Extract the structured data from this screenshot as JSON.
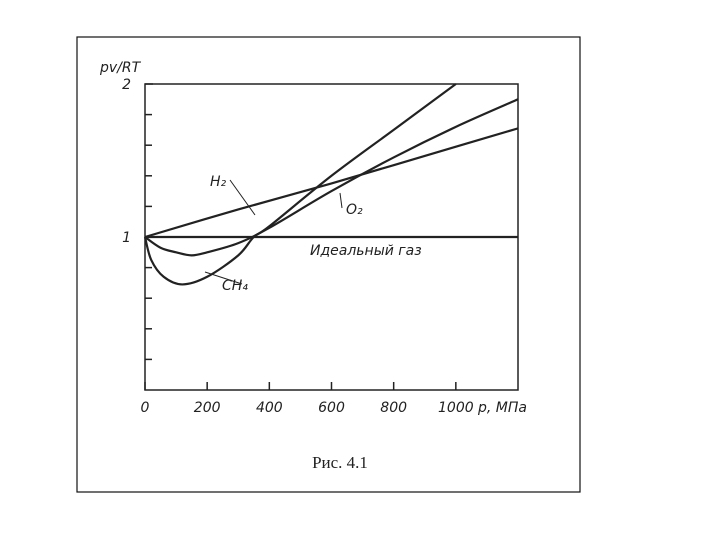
{
  "chart_data": {
    "type": "line",
    "title": "Рис. 4.1",
    "y_label": "pv/RT",
    "x_label": "p, МПа",
    "xlim": [
      0,
      1200
    ],
    "ylim": [
      0,
      2
    ],
    "xticks": [
      0,
      200,
      400,
      600,
      800,
      1000
    ],
    "yticks": [
      1,
      2
    ],
    "yminorticks": [
      0.2,
      0.4,
      0.6,
      0.8,
      1.2,
      1.4,
      1.6,
      1.8
    ],
    "color": "#222222",
    "series": [
      {
        "name": "H₂",
        "color": "#222222",
        "x": [
          0,
          300,
          600,
          900,
          1200
        ],
        "values": [
          1,
          1.18,
          1.35,
          1.53,
          1.71
        ]
      },
      {
        "name": "O₂",
        "color": "#222222",
        "x": [
          0,
          50,
          100,
          150,
          200,
          300,
          400,
          600,
          800,
          1000,
          1200
        ],
        "values": [
          1,
          0.93,
          0.9,
          0.88,
          0.9,
          0.96,
          1.06,
          1.3,
          1.52,
          1.72,
          1.9
        ]
      },
      {
        "name": "CH₄",
        "color": "#222222",
        "x": [
          0,
          20,
          60,
          120,
          200,
          300,
          350,
          400,
          600,
          800,
          1000
        ],
        "values": [
          1,
          0.85,
          0.74,
          0.69,
          0.74,
          0.88,
          1.0,
          1.07,
          1.4,
          1.7,
          2.0
        ]
      },
      {
        "name": "Идеальный газ",
        "color": "#222222",
        "x": [
          0,
          1200
        ],
        "values": [
          1,
          1
        ]
      }
    ]
  }
}
